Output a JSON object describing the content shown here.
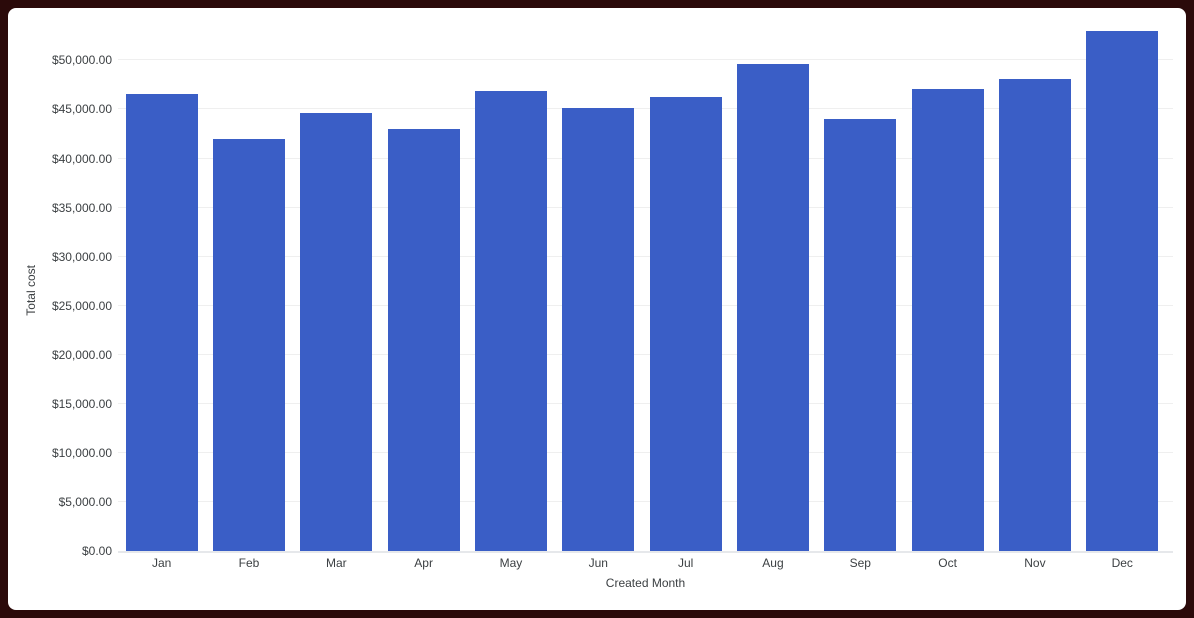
{
  "frame": {
    "border_color": "#2B0A0A",
    "card_background": "#FFFFFF"
  },
  "chart_data": {
    "type": "bar",
    "title": "",
    "xlabel": "Created Month",
    "ylabel": "Total cost",
    "categories": [
      "Jan",
      "Feb",
      "Mar",
      "Apr",
      "May",
      "Jun",
      "Jul",
      "Aug",
      "Sep",
      "Oct",
      "Nov",
      "Dec"
    ],
    "series": [
      {
        "name": "Total cost",
        "values": [
          46600,
          42000,
          44600,
          43000,
          46900,
          45200,
          46300,
          49600,
          44000,
          47100,
          48100,
          53000
        ]
      }
    ],
    "ylim": [
      0,
      53100
    ],
    "yticks": [
      {
        "value": 0,
        "label": "$0.00"
      },
      {
        "value": 5000,
        "label": "$5,000.00"
      },
      {
        "value": 10000,
        "label": "$10,000.00"
      },
      {
        "value": 15000,
        "label": "$15,000.00"
      },
      {
        "value": 20000,
        "label": "$20,000.00"
      },
      {
        "value": 25000,
        "label": "$25,000.00"
      },
      {
        "value": 30000,
        "label": "$30,000.00"
      },
      {
        "value": 35000,
        "label": "$35,000.00"
      },
      {
        "value": 40000,
        "label": "$40,000.00"
      },
      {
        "value": 45000,
        "label": "$45,000.00"
      },
      {
        "value": 50000,
        "label": "$50,000.00"
      }
    ],
    "grid": true,
    "legend": "none",
    "bar_color": "#3A5EC6",
    "gridline_color": "#EFEFEF",
    "baseline_color": "#E6E8EB",
    "label_color": "#3C4043"
  }
}
